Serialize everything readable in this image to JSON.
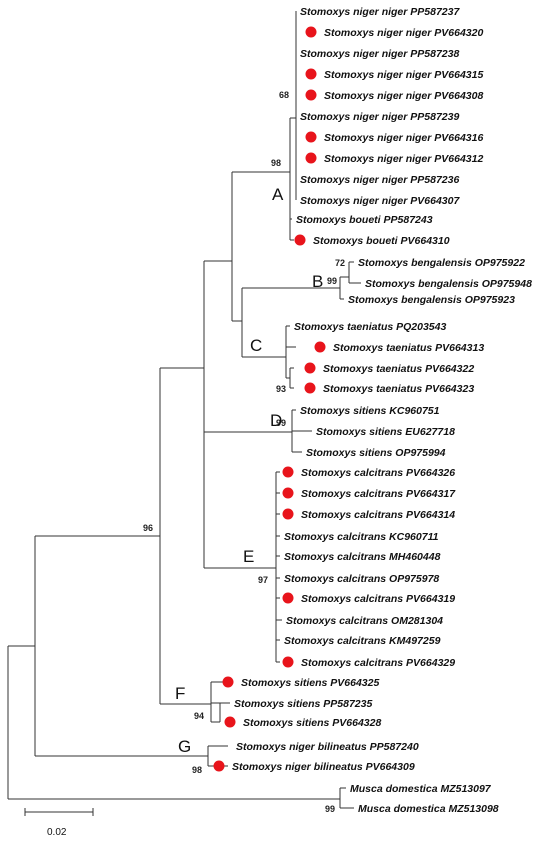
{
  "taxa": {
    "t01": "Stomoxys niger niger PP587237",
    "t02": "Stomoxys niger niger PV664320",
    "t03": "Stomoxys niger niger PP587238",
    "t04": "Stomoxys niger niger PV664315",
    "t05": "Stomoxys niger niger PV664308",
    "t06": "Stomoxys niger niger PP587239",
    "t07": "Stomoxys niger niger PV664316",
    "t08": "Stomoxys niger niger PV664312",
    "t09": "Stomoxys niger niger PP587236",
    "t10": "Stomoxys niger niger PV664307",
    "t11": "Stomoxys boueti PP587243",
    "t12": "Stomoxys boueti PV664310",
    "t13": "Stomoxys bengalensis OP975922",
    "t14": "Stomoxys bengalensis OP975948",
    "t15": "Stomoxys bengalensis OP975923",
    "t16": "Stomoxys taeniatus PQ203543",
    "t17": "Stomoxys taeniatus PV664313",
    "t18": "Stomoxys taeniatus PV664322",
    "t19": "Stomoxys taeniatus PV664323",
    "t20": "Stomoxys sitiens KC960751",
    "t21": "Stomoxys sitiens EU627718",
    "t22": "Stomoxys sitiens OP975994",
    "t23": "Stomoxys calcitrans PV664326",
    "t24": "Stomoxys calcitrans PV664317",
    "t25": "Stomoxys calcitrans PV664314",
    "t26": "Stomoxys calcitrans KC960711",
    "t27": "Stomoxys calcitrans MH460448",
    "t28": "Stomoxys calcitrans OP975978",
    "t29": "Stomoxys calcitrans PV664319",
    "t30": "Stomoxys calcitrans OM281304",
    "t31": "Stomoxys calcitrans KM497259",
    "t32": "Stomoxys calcitrans PV664329",
    "t33": "Stomoxys sitiens PV664325",
    "t34": "Stomoxys sitiens PP587235",
    "t35": "Stomoxys sitiens PV664328",
    "t36": "Stomoxys niger bilineatus PP587240",
    "t37": "Stomoxys niger bilineatus PV664309",
    "t38": "Musca domestica MZ513097",
    "t39": "Musca domestica MZ513098"
  },
  "bootstrap": {
    "b68": "68",
    "b98a": "98",
    "b72": "72",
    "b99a": "99",
    "b93": "93",
    "b99b": "99",
    "b96": "96",
    "b97": "97",
    "b94": "94",
    "b98b": "98",
    "b99c": "99"
  },
  "clades": {
    "A": "A",
    "B": "B",
    "C": "C",
    "D": "D",
    "E": "E",
    "F": "F",
    "G": "G"
  },
  "scale_bar": {
    "label": "0.02"
  },
  "colors": {
    "marker": "#e8141b",
    "branch": "#333333"
  }
}
